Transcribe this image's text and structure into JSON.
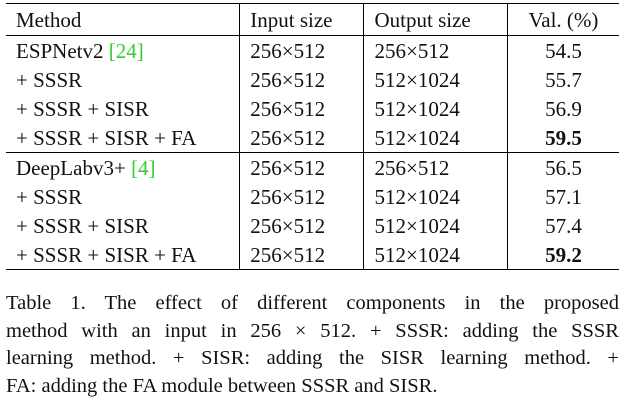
{
  "table": {
    "headers": [
      "Method",
      "Input size",
      "Output size",
      "Val. (%)"
    ],
    "groups": [
      {
        "rows": [
          {
            "method": "ESPNetv2 ",
            "cite": "[24]",
            "input": "256×512",
            "output": "256×512",
            "val": "54.5",
            "bold": false
          },
          {
            "method": "+ SSSR",
            "cite": "",
            "input": "256×512",
            "output": "512×1024",
            "val": "55.7",
            "bold": false
          },
          {
            "method": "+ SSSR + SISR",
            "cite": "",
            "input": "256×512",
            "output": "512×1024",
            "val": "56.9",
            "bold": false
          },
          {
            "method": "+ SSSR + SISR + FA",
            "cite": "",
            "input": "256×512",
            "output": "512×1024",
            "val": "59.5",
            "bold": true
          }
        ]
      },
      {
        "rows": [
          {
            "method": "DeepLabv3+ ",
            "cite": "[4]",
            "input": "256×512",
            "output": "256×512",
            "val": "56.5",
            "bold": false
          },
          {
            "method": "+ SSSR",
            "cite": "",
            "input": "256×512",
            "output": "512×1024",
            "val": "57.1",
            "bold": false
          },
          {
            "method": "+ SSSR + SISR",
            "cite": "",
            "input": "256×512",
            "output": "512×1024",
            "val": "57.4",
            "bold": false
          },
          {
            "method": "+ SSSR + SISR + FA",
            "cite": "",
            "input": "256×512",
            "output": "512×1024",
            "val": "59.2",
            "bold": true
          }
        ]
      }
    ]
  },
  "caption": {
    "lines": [
      "Table 1. The effect of different components in the proposed",
      "method with an input in 256 × 512. + SSSR: adding the SSSR",
      "learning method. + SISR: adding the SISR learning method. +",
      "FA: adding the FA module between SSSR and SISR."
    ]
  },
  "colors": {
    "citation": "#33cc33",
    "text": "#111111",
    "rule": "#000000"
  }
}
